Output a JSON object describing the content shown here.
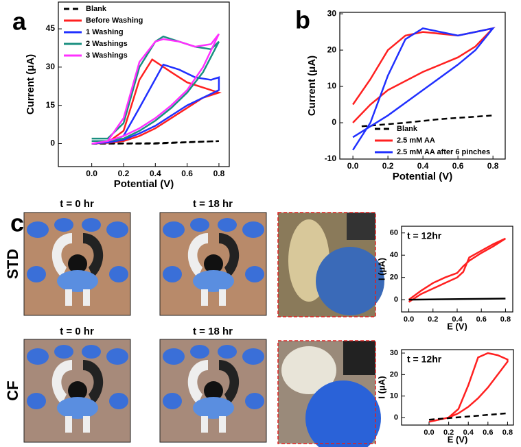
{
  "panel_labels": [
    "a",
    "b",
    "c"
  ],
  "photos": {
    "rows": [
      {
        "label": "STD",
        "times": [
          "t = 0 hr",
          "t = 18 hr"
        ]
      },
      {
        "label": "CF",
        "times": [
          "t = 0 hr",
          "t = 18 hr"
        ]
      }
    ]
  },
  "chart_data": [
    {
      "type": "line",
      "xlabel": "Potential (V)",
      "ylabel": "Current (μA)",
      "xlim": [
        -0.21,
        0.865
      ],
      "ylim": [
        -9,
        55.5
      ],
      "xticks": [
        {
          "value": 0,
          "label": "0.0"
        },
        0.2,
        0.4,
        0.6,
        0.8
      ],
      "yticks": [
        0,
        15,
        30,
        45
      ],
      "legend": "upper left",
      "series": [
        {
          "name": "Blank",
          "color": "#000000",
          "linestyle": "dashed",
          "x": [
            0,
            0.4,
            0.8,
            0.4,
            0
          ],
          "values": [
            0,
            0.2,
            1,
            0,
            0
          ]
        },
        {
          "name": "Before Washing",
          "color": "#ff2020",
          "x": [
            0,
            0.1,
            0.2,
            0.3,
            0.38,
            0.5,
            0.6,
            0.7,
            0.8,
            0.7,
            0.6,
            0.5,
            0.4,
            0.3,
            0.2,
            0.1,
            0
          ],
          "values": [
            0,
            0.5,
            5,
            25,
            33,
            28,
            24,
            22,
            20,
            18,
            14,
            10,
            6,
            3,
            1,
            0.3,
            0
          ]
        },
        {
          "name": "1 Washing",
          "color": "#2030ff",
          "x": [
            0,
            0.1,
            0.2,
            0.3,
            0.45,
            0.55,
            0.65,
            0.75,
            0.8,
            0.8,
            0.7,
            0.6,
            0.5,
            0.4,
            0.3,
            0.2,
            0.1,
            0
          ],
          "values": [
            0,
            0.5,
            3,
            14,
            31,
            29,
            26,
            25,
            26,
            21,
            18,
            15,
            11,
            7,
            4,
            1.5,
            0.5,
            0
          ]
        },
        {
          "name": "2 Washings",
          "color": "#1a8f80",
          "x": [
            0,
            0.1,
            0.2,
            0.3,
            0.4,
            0.45,
            0.55,
            0.65,
            0.75,
            0.8,
            0.7,
            0.6,
            0.5,
            0.4,
            0.3,
            0.2,
            0.1,
            0
          ],
          "values": [
            2,
            2,
            8,
            30,
            40,
            42,
            40,
            38,
            37,
            40,
            28,
            20,
            14,
            9,
            5,
            2,
            1,
            1
          ]
        },
        {
          "name": "3 Washings",
          "color": "#ff30ff",
          "x": [
            0,
            0.1,
            0.2,
            0.3,
            0.4,
            0.45,
            0.55,
            0.65,
            0.75,
            0.8,
            0.7,
            0.6,
            0.5,
            0.4,
            0.3,
            0.2,
            0.1,
            0
          ],
          "values": [
            0,
            1,
            10,
            32,
            40,
            41,
            40,
            38,
            39,
            43,
            30,
            21,
            15,
            10,
            6,
            3,
            1,
            0
          ]
        }
      ]
    },
    {
      "type": "line",
      "xlabel": "Potential (V)",
      "ylabel": "Current (μA)",
      "xlim": [
        -0.075,
        0.87
      ],
      "ylim": [
        -10,
        30.4
      ],
      "xticks": [
        {
          "value": 0,
          "label": "0.0"
        },
        0.2,
        0.4,
        0.6,
        0.8
      ],
      "yticks": [
        -10,
        0,
        10,
        20,
        30
      ],
      "legend": "lower right",
      "series": [
        {
          "name": "Blank",
          "color": "#000000",
          "linestyle": "dashed",
          "x": [
            0.05,
            0.3,
            0.5,
            0.8
          ],
          "values": [
            -1,
            0,
            1,
            2
          ]
        },
        {
          "name": "2.5 mM AA",
          "color": "#ff2020",
          "x": [
            0,
            0.1,
            0.2,
            0.3,
            0.4,
            0.6,
            0.7,
            0.8,
            0.7,
            0.6,
            0.4,
            0.2,
            0.1,
            0
          ],
          "values": [
            5,
            12,
            20,
            24,
            25,
            24,
            25,
            26,
            21,
            18,
            14,
            9,
            5,
            0
          ]
        },
        {
          "name": "2.5 mM AA after 6 pinches",
          "color": "#2030ff",
          "x": [
            0,
            0.1,
            0.2,
            0.3,
            0.4,
            0.5,
            0.6,
            0.7,
            0.8,
            0.7,
            0.6,
            0.4,
            0.2,
            0.1,
            0
          ],
          "values": [
            -7.5,
            0,
            13,
            23,
            26,
            25,
            24,
            25,
            26,
            20,
            16,
            9,
            2,
            -1,
            -4
          ]
        }
      ]
    },
    {
      "type": "line",
      "xlabel": "E (V)",
      "ylabel": "I (μA)",
      "annotation": "t = 12hr",
      "xlim": [
        -0.06,
        0.86
      ],
      "ylim": [
        -11,
        66
      ],
      "xticks": [
        {
          "value": 0,
          "label": "0.0"
        },
        0.2,
        0.4,
        0.6,
        0.8
      ],
      "yticks": [
        0,
        20,
        40,
        60
      ],
      "series": [
        {
          "color": "#ff2020",
          "x": [
            0,
            0.1,
            0.2,
            0.3,
            0.4,
            0.45,
            0.5,
            0.6,
            0.7,
            0.8,
            0.7,
            0.6,
            0.5,
            0.45,
            0.4,
            0.3,
            0.2,
            0.1,
            0
          ],
          "values": [
            0,
            8,
            15,
            20,
            24,
            30,
            35,
            42,
            48,
            55,
            50,
            44,
            38,
            25,
            20,
            15,
            10,
            5,
            -2
          ]
        },
        {
          "color": "#000000",
          "x": [
            0,
            0.8
          ],
          "values": [
            0,
            1
          ]
        }
      ]
    },
    {
      "type": "line",
      "xlabel": "E (V)",
      "ylabel": "I (μA)",
      "annotation": "t = 12hr",
      "xlim": [
        -0.28,
        0.86
      ],
      "ylim": [
        -3.5,
        31.6
      ],
      "xticks": [
        {
          "value": 0,
          "label": "0.0"
        },
        0.2,
        0.4,
        0.6,
        0.8
      ],
      "yticks": [
        0,
        10,
        20,
        30
      ],
      "series": [
        {
          "color": "#ff2020",
          "x": [
            0,
            0.1,
            0.2,
            0.3,
            0.4,
            0.5,
            0.6,
            0.7,
            0.8,
            0.8,
            0.7,
            0.6,
            0.5,
            0.4,
            0.3,
            0.2,
            0.1,
            0
          ],
          "values": [
            -2,
            -1,
            0,
            4,
            15,
            28,
            30,
            29,
            27,
            26,
            20,
            14,
            9,
            5,
            2,
            0,
            -1,
            -2
          ]
        },
        {
          "color": "#000000",
          "linestyle": "dashed",
          "x": [
            0,
            0.4,
            0.8
          ],
          "values": [
            -1,
            0.5,
            2
          ]
        }
      ]
    }
  ]
}
